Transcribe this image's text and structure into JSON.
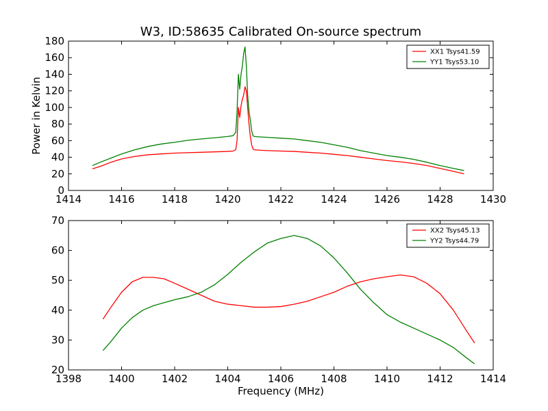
{
  "chart_data": [
    {
      "type": "line",
      "title": "W3, ID:58635 Calibrated On-source spectrum",
      "xlabel": "",
      "ylabel": "Power in Kelvin",
      "xlim": [
        1414,
        1430
      ],
      "ylim": [
        0,
        180
      ],
      "xticks": [
        1414,
        1416,
        1418,
        1420,
        1422,
        1424,
        1426,
        1428,
        1430
      ],
      "yticks": [
        0,
        20,
        40,
        60,
        80,
        100,
        120,
        140,
        160,
        180
      ],
      "grid": false,
      "legend_position": "top-right",
      "series": [
        {
          "name": "XX1 Tsys41.59",
          "color": "#ff0000",
          "x": [
            1414.9,
            1415.2,
            1415.6,
            1416.0,
            1416.5,
            1417.0,
            1417.5,
            1418.0,
            1418.5,
            1419.0,
            1419.5,
            1420.0,
            1420.2,
            1420.3,
            1420.35,
            1420.4,
            1420.45,
            1420.5,
            1420.55,
            1420.6,
            1420.65,
            1420.7,
            1420.75,
            1420.8,
            1420.85,
            1420.9,
            1420.95,
            1421.0,
            1421.2,
            1421.5,
            1422.0,
            1422.5,
            1423.0,
            1423.5,
            1424.0,
            1424.5,
            1425.0,
            1425.5,
            1426.0,
            1426.5,
            1427.0,
            1427.5,
            1428.0,
            1428.5,
            1428.9
          ],
          "y": [
            26,
            29,
            34,
            38,
            41,
            43,
            44,
            45,
            45.5,
            46,
            46.5,
            47,
            47.5,
            49,
            60,
            100,
            88,
            102,
            110,
            115,
            125,
            120,
            100,
            80,
            65,
            55,
            50,
            49,
            48.5,
            48,
            47.5,
            47,
            46,
            45,
            43.5,
            42,
            40,
            38,
            36,
            34.5,
            32.5,
            30,
            26.5,
            23,
            20
          ]
        },
        {
          "name": "YY1 Tsys53.10",
          "color": "#008000",
          "x": [
            1414.9,
            1415.2,
            1415.6,
            1416.0,
            1416.5,
            1417.0,
            1417.5,
            1418.0,
            1418.5,
            1419.0,
            1419.5,
            1420.0,
            1420.2,
            1420.3,
            1420.35,
            1420.4,
            1420.45,
            1420.5,
            1420.55,
            1420.6,
            1420.65,
            1420.7,
            1420.75,
            1420.8,
            1420.85,
            1420.9,
            1420.95,
            1421.0,
            1421.2,
            1421.5,
            1422.0,
            1422.5,
            1423.0,
            1423.5,
            1424.0,
            1424.5,
            1425.0,
            1425.5,
            1426.0,
            1426.5,
            1427.0,
            1427.5,
            1428.0,
            1428.5,
            1428.9
          ],
          "y": [
            30,
            34,
            39,
            44,
            49,
            53,
            56,
            58,
            60.5,
            62,
            63.5,
            65,
            66,
            70,
            95,
            140,
            122,
            140,
            150,
            165,
            173,
            150,
            115,
            95,
            85,
            72,
            66,
            65,
            64.5,
            64,
            63,
            62,
            60,
            58,
            55,
            52,
            48,
            45,
            42,
            40,
            37.5,
            34,
            30,
            26.5,
            24
          ]
        }
      ]
    },
    {
      "type": "line",
      "title": "",
      "xlabel": "Frequency (MHz)",
      "ylabel": "",
      "xlim": [
        1398,
        1414
      ],
      "ylim": [
        20,
        70
      ],
      "xticks": [
        1398,
        1400,
        1402,
        1404,
        1406,
        1408,
        1410,
        1412,
        1414
      ],
      "yticks": [
        20,
        30,
        40,
        50,
        60,
        70
      ],
      "grid": false,
      "legend_position": "top-right",
      "series": [
        {
          "name": "XX2 Tsys45.13",
          "color": "#ff0000",
          "x": [
            1399.3,
            1399.6,
            1400.0,
            1400.4,
            1400.8,
            1401.2,
            1401.6,
            1402.0,
            1402.5,
            1403.0,
            1403.5,
            1404.0,
            1404.5,
            1405.0,
            1405.5,
            1406.0,
            1406.5,
            1407.0,
            1407.5,
            1408.0,
            1408.5,
            1409.0,
            1409.5,
            1410.0,
            1410.5,
            1411.0,
            1411.5,
            1412.0,
            1412.5,
            1413.0,
            1413.3
          ],
          "y": [
            37,
            41,
            46,
            49.5,
            51,
            51,
            50.5,
            49,
            47,
            45,
            43,
            42,
            41.5,
            41,
            41,
            41.2,
            42,
            43,
            44.5,
            46,
            48,
            49.5,
            50.5,
            51.2,
            51.8,
            51.2,
            49,
            45.5,
            40,
            33,
            29
          ]
        },
        {
          "name": "YY2 Tsys44.79",
          "color": "#008000",
          "x": [
            1399.3,
            1399.6,
            1400.0,
            1400.4,
            1400.8,
            1401.2,
            1401.6,
            1402.0,
            1402.5,
            1403.0,
            1403.5,
            1404.0,
            1404.5,
            1405.0,
            1405.5,
            1406.0,
            1406.5,
            1407.0,
            1407.5,
            1408.0,
            1408.5,
            1409.0,
            1409.5,
            1410.0,
            1410.5,
            1411.0,
            1411.5,
            1412.0,
            1412.5,
            1413.0,
            1413.3
          ],
          "y": [
            26.5,
            29.5,
            34,
            37.5,
            40,
            41.5,
            42.5,
            43.5,
            44.5,
            46,
            48.5,
            52,
            56,
            59.5,
            62.5,
            64,
            65,
            64,
            61.5,
            57.5,
            52.5,
            47,
            42.5,
            38.5,
            36,
            34,
            32,
            30,
            27.5,
            24,
            22
          ]
        }
      ]
    }
  ]
}
